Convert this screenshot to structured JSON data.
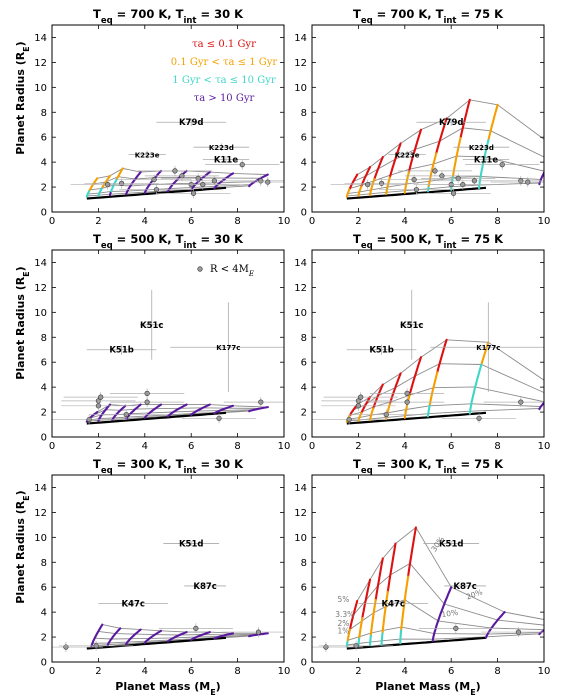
{
  "figure": {
    "y_axis_label": "Planet Radius (R",
    "y_axis_sub": "E",
    "x_axis_label": "Planet Mass (M",
    "x_axis_sub": "E"
  },
  "legend": {
    "entries": [
      {
        "text": "τa ≤ 0.1 Gyr",
        "color": "#dd1111"
      },
      {
        "text": "0.1 Gyr < τa ≤ 1 Gyr",
        "color": "#f5a000"
      },
      {
        "text": "1 Gyr < τa ≤ 10 Gyr",
        "color": "#3fd6c8"
      },
      {
        "text": "τa > 10 Gyr",
        "color": "#5a1aa0"
      }
    ],
    "marker_label": "R < 4M"
  },
  "chart_data": [
    {
      "type": "line",
      "panel": "top-left",
      "title": "T_eq = 700 K, T_int = 30 K",
      "title_parts": {
        "teq": "700 K",
        "tint": "30 K"
      },
      "xlim": [
        0,
        10
      ],
      "ylim": [
        0,
        15
      ],
      "xticks": [
        0,
        2,
        4,
        6,
        8,
        10
      ],
      "yticks": [
        0,
        2,
        4,
        6,
        8,
        10,
        12,
        14
      ],
      "has_legend": true,
      "planets": [
        {
          "name": "K79d",
          "x": 6.0,
          "y": 7.2,
          "xerr": 1.5,
          "yerr": 0.3
        },
        {
          "name": "K223e",
          "x": 4.1,
          "y": 4.6,
          "xerr": 0.8,
          "yerr": 0.3
        },
        {
          "name": "K223d",
          "x": 7.3,
          "y": 5.2,
          "xerr": 1.2,
          "yerr": 0.3
        },
        {
          "name": "K11e",
          "x": 7.5,
          "y": 4.2,
          "xerr": 1.0,
          "yerr": 0.3
        }
      ],
      "curves": [
        {
          "mass": 1.5,
          "r_end": 2.7,
          "bands": [
            0.0,
            0.55,
            1.0,
            1.0
          ]
        },
        {
          "mass": 2.0,
          "r_end": 2.9,
          "bands": [
            0.0,
            0.45,
            1.0,
            1.0
          ]
        },
        {
          "mass": 2.5,
          "r_end": 3.5,
          "bands": [
            0.0,
            0.3,
            0.8,
            1.0
          ]
        },
        {
          "mass": 3.2,
          "r_end": 3.2,
          "bands": [
            0.0,
            0.0,
            0.0,
            1.0
          ]
        },
        {
          "mass": 4.0,
          "r_end": 3.3,
          "bands": [
            0.0,
            0.0,
            0.0,
            1.0
          ]
        },
        {
          "mass": 5.0,
          "r_end": 3.3,
          "bands": [
            0.0,
            0.0,
            0.0,
            1.0
          ]
        },
        {
          "mass": 6.0,
          "r_end": 3.2,
          "bands": [
            0.0,
            0.0,
            0.0,
            1.0
          ]
        },
        {
          "mass": 7.0,
          "r_end": 3.1,
          "bands": [
            0.0,
            0.0,
            0.0,
            1.0
          ]
        },
        {
          "mass": 8.5,
          "r_end": 3.0,
          "bands": [
            0.0,
            0.0,
            0.0,
            1.0
          ]
        }
      ],
      "points": [
        [
          5.3,
          3.3
        ],
        [
          5.6,
          2.9
        ],
        [
          6.0,
          2.2
        ],
        [
          4.4,
          2.6
        ],
        [
          4.5,
          1.8
        ],
        [
          3.0,
          2.3
        ],
        [
          6.3,
          2.7
        ],
        [
          6.5,
          2.2
        ],
        [
          8.2,
          3.8
        ],
        [
          9.0,
          2.5
        ],
        [
          9.3,
          2.4
        ],
        [
          2.4,
          2.2
        ],
        [
          7.0,
          2.5
        ],
        [
          6.1,
          1.5
        ]
      ]
    },
    {
      "type": "line",
      "panel": "top-right",
      "title": "T_eq = 700 K, T_int = 75 K",
      "title_parts": {
        "teq": "700 K",
        "tint": "75 K"
      },
      "xlim": [
        0,
        10
      ],
      "ylim": [
        0,
        15
      ],
      "xticks": [
        0,
        2,
        4,
        6,
        8,
        10
      ],
      "yticks": [
        0,
        2,
        4,
        6,
        8,
        10,
        12,
        14
      ],
      "planets": [
        {
          "name": "K79d",
          "x": 6.0,
          "y": 7.2,
          "xerr": 1.5,
          "yerr": 0.3
        },
        {
          "name": "K223e",
          "x": 4.1,
          "y": 4.6,
          "xerr": 0.8,
          "yerr": 0.3
        },
        {
          "name": "K223d",
          "x": 7.3,
          "y": 5.2,
          "xerr": 1.2,
          "yerr": 0.3
        },
        {
          "name": "K11e",
          "x": 7.5,
          "y": 4.2,
          "xerr": 1.0,
          "yerr": 0.3
        }
      ],
      "curves": [
        {
          "mass": 1.5,
          "r_end": 3.0,
          "bands": [
            0.5,
            1.0,
            1.0,
            1.0
          ]
        },
        {
          "mass": 2.0,
          "r_end": 3.6,
          "bands": [
            0.5,
            1.0,
            1.0,
            1.0
          ]
        },
        {
          "mass": 2.5,
          "r_end": 4.4,
          "bands": [
            0.4,
            1.0,
            1.0,
            1.0
          ]
        },
        {
          "mass": 3.2,
          "r_end": 5.5,
          "bands": [
            0.5,
            1.0,
            1.0,
            1.0
          ]
        },
        {
          "mass": 4.0,
          "r_end": 6.6,
          "bands": [
            0.5,
            1.0,
            1.0,
            1.0
          ]
        },
        {
          "mass": 5.0,
          "r_end": 7.5,
          "bands": [
            0.35,
            0.85,
            1.0,
            1.0
          ]
        },
        {
          "mass": 6.0,
          "r_end": 9.0,
          "bands": [
            0.3,
            0.7,
            1.0,
            1.0
          ]
        },
        {
          "mass": 7.2,
          "r_end": 8.6,
          "bands": [
            0.0,
            0.3,
            1.0,
            1.0
          ]
        },
        {
          "mass": 9.8,
          "r_end": 5.0,
          "bands": [
            0.0,
            0.0,
            0.0,
            1.0
          ]
        }
      ],
      "points": [
        [
          5.3,
          3.3
        ],
        [
          5.6,
          2.9
        ],
        [
          6.0,
          2.2
        ],
        [
          4.4,
          2.6
        ],
        [
          4.5,
          1.8
        ],
        [
          3.0,
          2.3
        ],
        [
          6.3,
          2.7
        ],
        [
          6.5,
          2.2
        ],
        [
          8.2,
          3.8
        ],
        [
          9.0,
          2.5
        ],
        [
          9.3,
          2.4
        ],
        [
          2.4,
          2.2
        ],
        [
          7.0,
          2.5
        ],
        [
          6.1,
          1.5
        ]
      ]
    },
    {
      "type": "line",
      "panel": "middle-left",
      "title": "T_eq = 500 K, T_int = 30 K",
      "title_parts": {
        "teq": "500 K",
        "tint": "30 K"
      },
      "xlim": [
        0,
        10
      ],
      "ylim": [
        0,
        15
      ],
      "xticks": [
        0,
        2,
        4,
        6,
        8,
        10
      ],
      "yticks": [
        0,
        2,
        4,
        6,
        8,
        10,
        12,
        14
      ],
      "has_marker_legend": true,
      "planets": [
        {
          "name": "K51c",
          "x": 4.3,
          "y": 9.0,
          "xerr": 0.5,
          "yerr": 2.8
        },
        {
          "name": "K51b",
          "x": 3.0,
          "y": 7.0,
          "xerr": 1.5,
          "yerr": 0.4
        },
        {
          "name": "K177c",
          "x": 7.6,
          "y": 7.2,
          "xerr": 2.5,
          "yerr": 3.6
        }
      ],
      "curves": [
        {
          "mass": 1.5,
          "r_end": 2.0,
          "bands": [
            0.0,
            0.0,
            0.0,
            1.0
          ]
        },
        {
          "mass": 2.0,
          "r_end": 2.6,
          "bands": [
            0.0,
            0.0,
            0.0,
            1.0
          ]
        },
        {
          "mass": 2.6,
          "r_end": 2.5,
          "bands": [
            0.0,
            0.0,
            0.0,
            1.0
          ]
        },
        {
          "mass": 3.2,
          "r_end": 2.6,
          "bands": [
            0.0,
            0.0,
            0.0,
            1.0
          ]
        },
        {
          "mass": 4.0,
          "r_end": 2.6,
          "bands": [
            0.0,
            0.0,
            0.0,
            1.0
          ]
        },
        {
          "mass": 5.0,
          "r_end": 2.6,
          "bands": [
            0.0,
            0.0,
            0.0,
            1.0
          ]
        },
        {
          "mass": 6.0,
          "r_end": 2.6,
          "bands": [
            0.0,
            0.0,
            0.0,
            1.0
          ]
        },
        {
          "mass": 7.0,
          "r_end": 2.5,
          "bands": [
            0.0,
            0.0,
            0.0,
            1.0
          ]
        },
        {
          "mass": 8.5,
          "r_end": 2.4,
          "bands": [
            0.0,
            0.0,
            0.0,
            1.0
          ]
        }
      ],
      "points": [
        [
          2.0,
          2.9
        ],
        [
          2.1,
          3.2
        ],
        [
          2.0,
          2.5
        ],
        [
          4.1,
          3.5
        ],
        [
          4.1,
          2.8
        ],
        [
          1.6,
          1.4
        ],
        [
          9.0,
          2.8
        ],
        [
          7.2,
          1.5
        ],
        [
          3.2,
          1.8
        ]
      ]
    },
    {
      "type": "line",
      "panel": "middle-right",
      "title": "T_eq = 500 K, T_int = 75 K",
      "title_parts": {
        "teq": "500 K",
        "tint": "75 K"
      },
      "xlim": [
        0,
        10
      ],
      "ylim": [
        0,
        15
      ],
      "xticks": [
        0,
        2,
        4,
        6,
        8,
        10
      ],
      "yticks": [
        0,
        2,
        4,
        6,
        8,
        10,
        12,
        14
      ],
      "planets": [
        {
          "name": "K51c",
          "x": 4.3,
          "y": 9.0,
          "xerr": 0.5,
          "yerr": 2.8
        },
        {
          "name": "K51b",
          "x": 3.0,
          "y": 7.0,
          "xerr": 1.5,
          "yerr": 0.4
        },
        {
          "name": "K177c",
          "x": 7.6,
          "y": 7.2,
          "xerr": 2.5,
          "yerr": 3.6
        }
      ],
      "curves": [
        {
          "mass": 1.5,
          "r_end": 2.6,
          "bands": [
            0.5,
            1.0,
            1.0,
            1.0
          ]
        },
        {
          "mass": 2.0,
          "r_end": 3.2,
          "bands": [
            0.5,
            1.0,
            1.0,
            1.0
          ]
        },
        {
          "mass": 2.5,
          "r_end": 4.2,
          "bands": [
            0.5,
            1.0,
            1.0,
            1.0
          ]
        },
        {
          "mass": 3.2,
          "r_end": 5.1,
          "bands": [
            0.5,
            1.0,
            1.0,
            1.0
          ]
        },
        {
          "mass": 4.0,
          "r_end": 6.4,
          "bands": [
            0.45,
            1.0,
            1.0,
            1.0
          ]
        },
        {
          "mass": 5.0,
          "r_end": 7.8,
          "bands": [
            0.3,
            0.7,
            1.0,
            1.0
          ]
        },
        {
          "mass": 6.8,
          "r_end": 7.6,
          "bands": [
            0.0,
            0.2,
            1.0,
            1.0
          ]
        },
        {
          "mass": 9.8,
          "r_end": 3.8,
          "bands": [
            0.0,
            0.0,
            0.0,
            1.0
          ]
        }
      ],
      "points": [
        [
          2.0,
          2.9
        ],
        [
          2.1,
          3.2
        ],
        [
          2.0,
          2.5
        ],
        [
          4.1,
          3.5
        ],
        [
          4.1,
          2.8
        ],
        [
          1.6,
          1.4
        ],
        [
          9.0,
          2.8
        ],
        [
          7.2,
          1.5
        ],
        [
          3.2,
          1.8
        ]
      ]
    },
    {
      "type": "line",
      "panel": "bottom-left",
      "title": "T_eq = 300 K, T_int = 30 K",
      "title_parts": {
        "teq": "300 K",
        "tint": "30 K"
      },
      "xlim": [
        0,
        10
      ],
      "ylim": [
        0,
        15
      ],
      "xticks": [
        0,
        2,
        4,
        6,
        8,
        10
      ],
      "yticks": [
        0,
        2,
        4,
        6,
        8,
        10,
        12,
        14
      ],
      "planets": [
        {
          "name": "K51d",
          "x": 6.0,
          "y": 9.5,
          "xerr": 1.2,
          "yerr": 0.2
        },
        {
          "name": "K87c",
          "x": 6.6,
          "y": 6.1,
          "xerr": 0.9,
          "yerr": 0.2
        },
        {
          "name": "K47c",
          "x": 3.5,
          "y": 4.7,
          "xerr": 1.5,
          "yerr": 0.2
        }
      ],
      "curves": [
        {
          "mass": 1.7,
          "r_end": 3.0,
          "bands": [
            0.0,
            0.0,
            0.0,
            1.0
          ]
        },
        {
          "mass": 2.4,
          "r_end": 2.7,
          "bands": [
            0.0,
            0.0,
            0.0,
            1.0
          ]
        },
        {
          "mass": 3.2,
          "r_end": 2.6,
          "bands": [
            0.0,
            0.0,
            0.0,
            1.0
          ]
        },
        {
          "mass": 4.0,
          "r_end": 2.5,
          "bands": [
            0.0,
            0.0,
            0.0,
            1.0
          ]
        },
        {
          "mass": 5.0,
          "r_end": 2.4,
          "bands": [
            0.0,
            0.0,
            0.0,
            1.0
          ]
        },
        {
          "mass": 6.0,
          "r_end": 2.4,
          "bands": [
            0.0,
            0.0,
            0.0,
            1.0
          ]
        },
        {
          "mass": 7.0,
          "r_end": 2.3,
          "bands": [
            0.0,
            0.0,
            0.0,
            1.0
          ]
        },
        {
          "mass": 8.5,
          "r_end": 2.3,
          "bands": [
            0.0,
            0.0,
            0.0,
            1.0
          ]
        }
      ],
      "points": [
        [
          0.6,
          1.2
        ],
        [
          6.2,
          2.7
        ],
        [
          8.9,
          2.4
        ],
        [
          1.9,
          1.3
        ]
      ]
    },
    {
      "type": "line",
      "panel": "bottom-right",
      "title": "T_eq = 300 K, T_int = 75 K",
      "title_parts": {
        "teq": "300 K",
        "tint": "75 K"
      },
      "xlim": [
        0,
        10
      ],
      "ylim": [
        0,
        15
      ],
      "xticks": [
        0,
        2,
        4,
        6,
        8,
        10
      ],
      "yticks": [
        0,
        2,
        4,
        6,
        8,
        10,
        12,
        14
      ],
      "planets": [
        {
          "name": "K51d",
          "x": 6.0,
          "y": 9.5,
          "xerr": 1.2,
          "yerr": 0.2
        },
        {
          "name": "K87c",
          "x": 6.6,
          "y": 6.1,
          "xerr": 0.9,
          "yerr": 0.2
        },
        {
          "name": "K47c",
          "x": 3.5,
          "y": 4.7,
          "xerr": 1.5,
          "yerr": 0.2
        }
      ],
      "curves": [
        {
          "mass": 1.5,
          "r_end": 4.9,
          "bands": [
            0.45,
            0.75,
            1.0,
            1.0
          ]
        },
        {
          "mass": 2.0,
          "r_end": 6.6,
          "bands": [
            0.4,
            0.75,
            1.0,
            1.0
          ]
        },
        {
          "mass": 2.5,
          "r_end": 8.3,
          "bands": [
            0.35,
            0.75,
            1.0,
            1.0
          ]
        },
        {
          "mass": 3.0,
          "r_end": 9.5,
          "bands": [
            0.35,
            0.75,
            1.0,
            1.0
          ]
        },
        {
          "mass": 3.8,
          "r_end": 10.8,
          "bands": [
            0.3,
            0.75,
            1.0,
            1.0
          ]
        },
        {
          "mass": 5.2,
          "r_end": 6.0,
          "bands": [
            0.0,
            0.0,
            0.0,
            1.0
          ]
        },
        {
          "mass": 7.5,
          "r_end": 4.0,
          "bands": [
            0.0,
            0.0,
            0.0,
            1.0
          ]
        },
        {
          "mass": 9.8,
          "r_end": 3.2,
          "bands": [
            0.0,
            0.0,
            0.0,
            1.0
          ]
        }
      ],
      "fraction_labels": [
        {
          "text": "30%",
          "x": 5.3,
          "y": 8.8,
          "rot": 55
        },
        {
          "text": "20%",
          "x": 6.7,
          "y": 5.0,
          "rot": 20
        },
        {
          "text": "10%",
          "x": 5.6,
          "y": 3.6,
          "rot": 8
        },
        {
          "text": "5%",
          "x": 1.1,
          "y": 4.8,
          "rot": 0
        },
        {
          "text": "3.3%",
          "x": 1.0,
          "y": 3.6,
          "rot": 0
        },
        {
          "text": "2%",
          "x": 1.1,
          "y": 2.9,
          "rot": 0
        },
        {
          "text": "1%",
          "x": 1.1,
          "y": 2.3,
          "rot": 0
        }
      ],
      "points": [
        [
          0.6,
          1.2
        ],
        [
          6.2,
          2.7
        ],
        [
          8.9,
          2.4
        ],
        [
          1.9,
          1.3
        ]
      ]
    }
  ]
}
